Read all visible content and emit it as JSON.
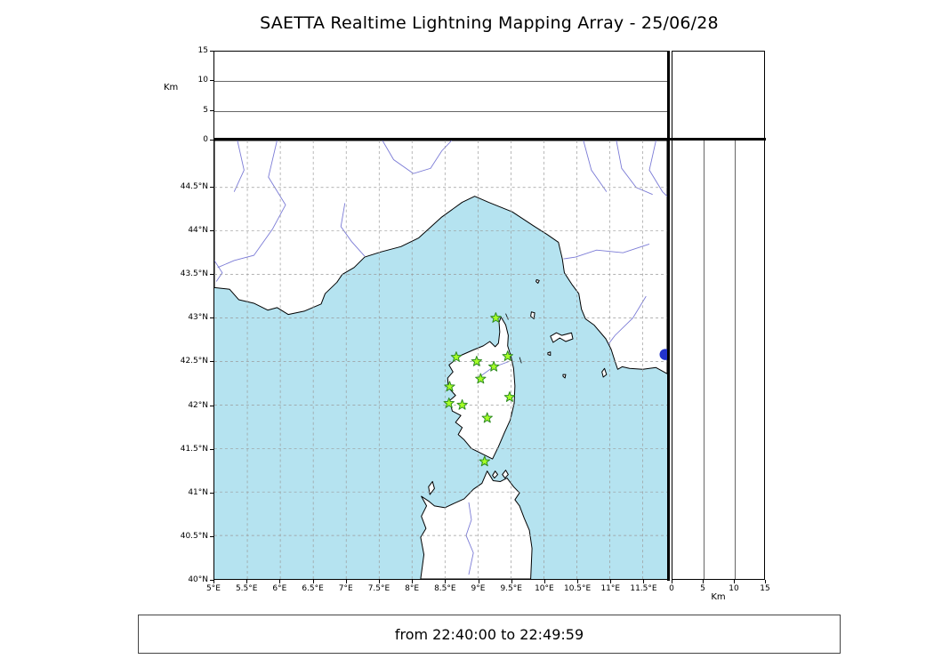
{
  "header": {
    "title": "SAETTA Realtime Lightning Mapping Array - 25/06/28"
  },
  "footer": {
    "label": "from 22:40:00 to 22:49:59"
  },
  "top_panel": {
    "axis_label": "Km",
    "ticks": [
      "15",
      "10",
      "5",
      "0"
    ],
    "tick_values": [
      15,
      10,
      5,
      0
    ]
  },
  "right_panel": {
    "axis_label": "Km",
    "ticks": [
      "0",
      "5",
      "10",
      "15"
    ],
    "tick_values": [
      0,
      5,
      10,
      15
    ]
  },
  "map_panel": {
    "lat_ticks": [
      {
        "label": "44.5°N",
        "value": 44.5
      },
      {
        "label": "44°N",
        "value": 44.0
      },
      {
        "label": "43.5°N",
        "value": 43.5
      },
      {
        "label": "43°N",
        "value": 43.0
      },
      {
        "label": "42.5°N",
        "value": 42.5
      },
      {
        "label": "42°N",
        "value": 42.0
      },
      {
        "label": "41.5°N",
        "value": 41.5
      },
      {
        "label": "41°N",
        "value": 41.0
      },
      {
        "label": "40.5°N",
        "value": 40.5
      },
      {
        "label": "40°N",
        "value": 40.0
      }
    ],
    "lon_ticks": [
      {
        "label": "5°E",
        "value": 5.0
      },
      {
        "label": "5.5°E",
        "value": 5.5
      },
      {
        "label": "6°E",
        "value": 6.0
      },
      {
        "label": "6.5°E",
        "value": 6.5
      },
      {
        "label": "7°E",
        "value": 7.0
      },
      {
        "label": "7.5°E",
        "value": 7.5
      },
      {
        "label": "8°E",
        "value": 8.0
      },
      {
        "label": "8.5°E",
        "value": 8.5
      },
      {
        "label": "9°E",
        "value": 9.0
      },
      {
        "label": "9.5°E",
        "value": 9.5
      },
      {
        "label": "10°E",
        "value": 10.0
      },
      {
        "label": "10.5°E",
        "value": 10.5
      },
      {
        "label": "11°E",
        "value": 11.0
      },
      {
        "label": "11.5°E",
        "value": 11.5
      }
    ]
  },
  "colors": {
    "sea": "#b5e3f0",
    "land": "#ffffff",
    "coast": "#000000",
    "grid": "#9a9a9a",
    "river": "#7b7bd6",
    "lake": "#2233cc",
    "station_fill": "#a6ff26",
    "station_stroke": "#2e8b22",
    "frame": "#000000"
  },
  "chart_data": {
    "type": "scatter",
    "title": "SAETTA Realtime Lightning Mapping Array - 25/06/28",
    "time_window": "from 22:40:00 to 22:49:59",
    "map": {
      "lon_range_deg_e": [
        5.0,
        11.87
      ],
      "lat_range_deg_n": [
        40.0,
        45.04
      ],
      "grid_step_deg": 0.5,
      "grid_style": "dashed"
    },
    "altitude_panels": {
      "top": {
        "axis": "Km",
        "range": [
          0,
          15
        ],
        "ticks": [
          0,
          5,
          10,
          15
        ],
        "points": []
      },
      "right": {
        "axis": "Km",
        "range": [
          0,
          15
        ],
        "ticks": [
          0,
          5,
          10,
          15
        ],
        "points": []
      }
    },
    "stations_lon_lat": [
      [
        9.27,
        43.0
      ],
      [
        8.67,
        42.55
      ],
      [
        8.98,
        42.5
      ],
      [
        9.45,
        42.56
      ],
      [
        9.24,
        42.44
      ],
      [
        9.04,
        42.3
      ],
      [
        8.57,
        42.21
      ],
      [
        9.48,
        42.09
      ],
      [
        8.56,
        42.02
      ],
      [
        8.76,
        42.0
      ],
      [
        9.14,
        41.85
      ],
      [
        9.1,
        41.35
      ]
    ],
    "lake_marker_lon_lat": [
      11.84,
      42.58
    ],
    "lightning_sources": []
  }
}
